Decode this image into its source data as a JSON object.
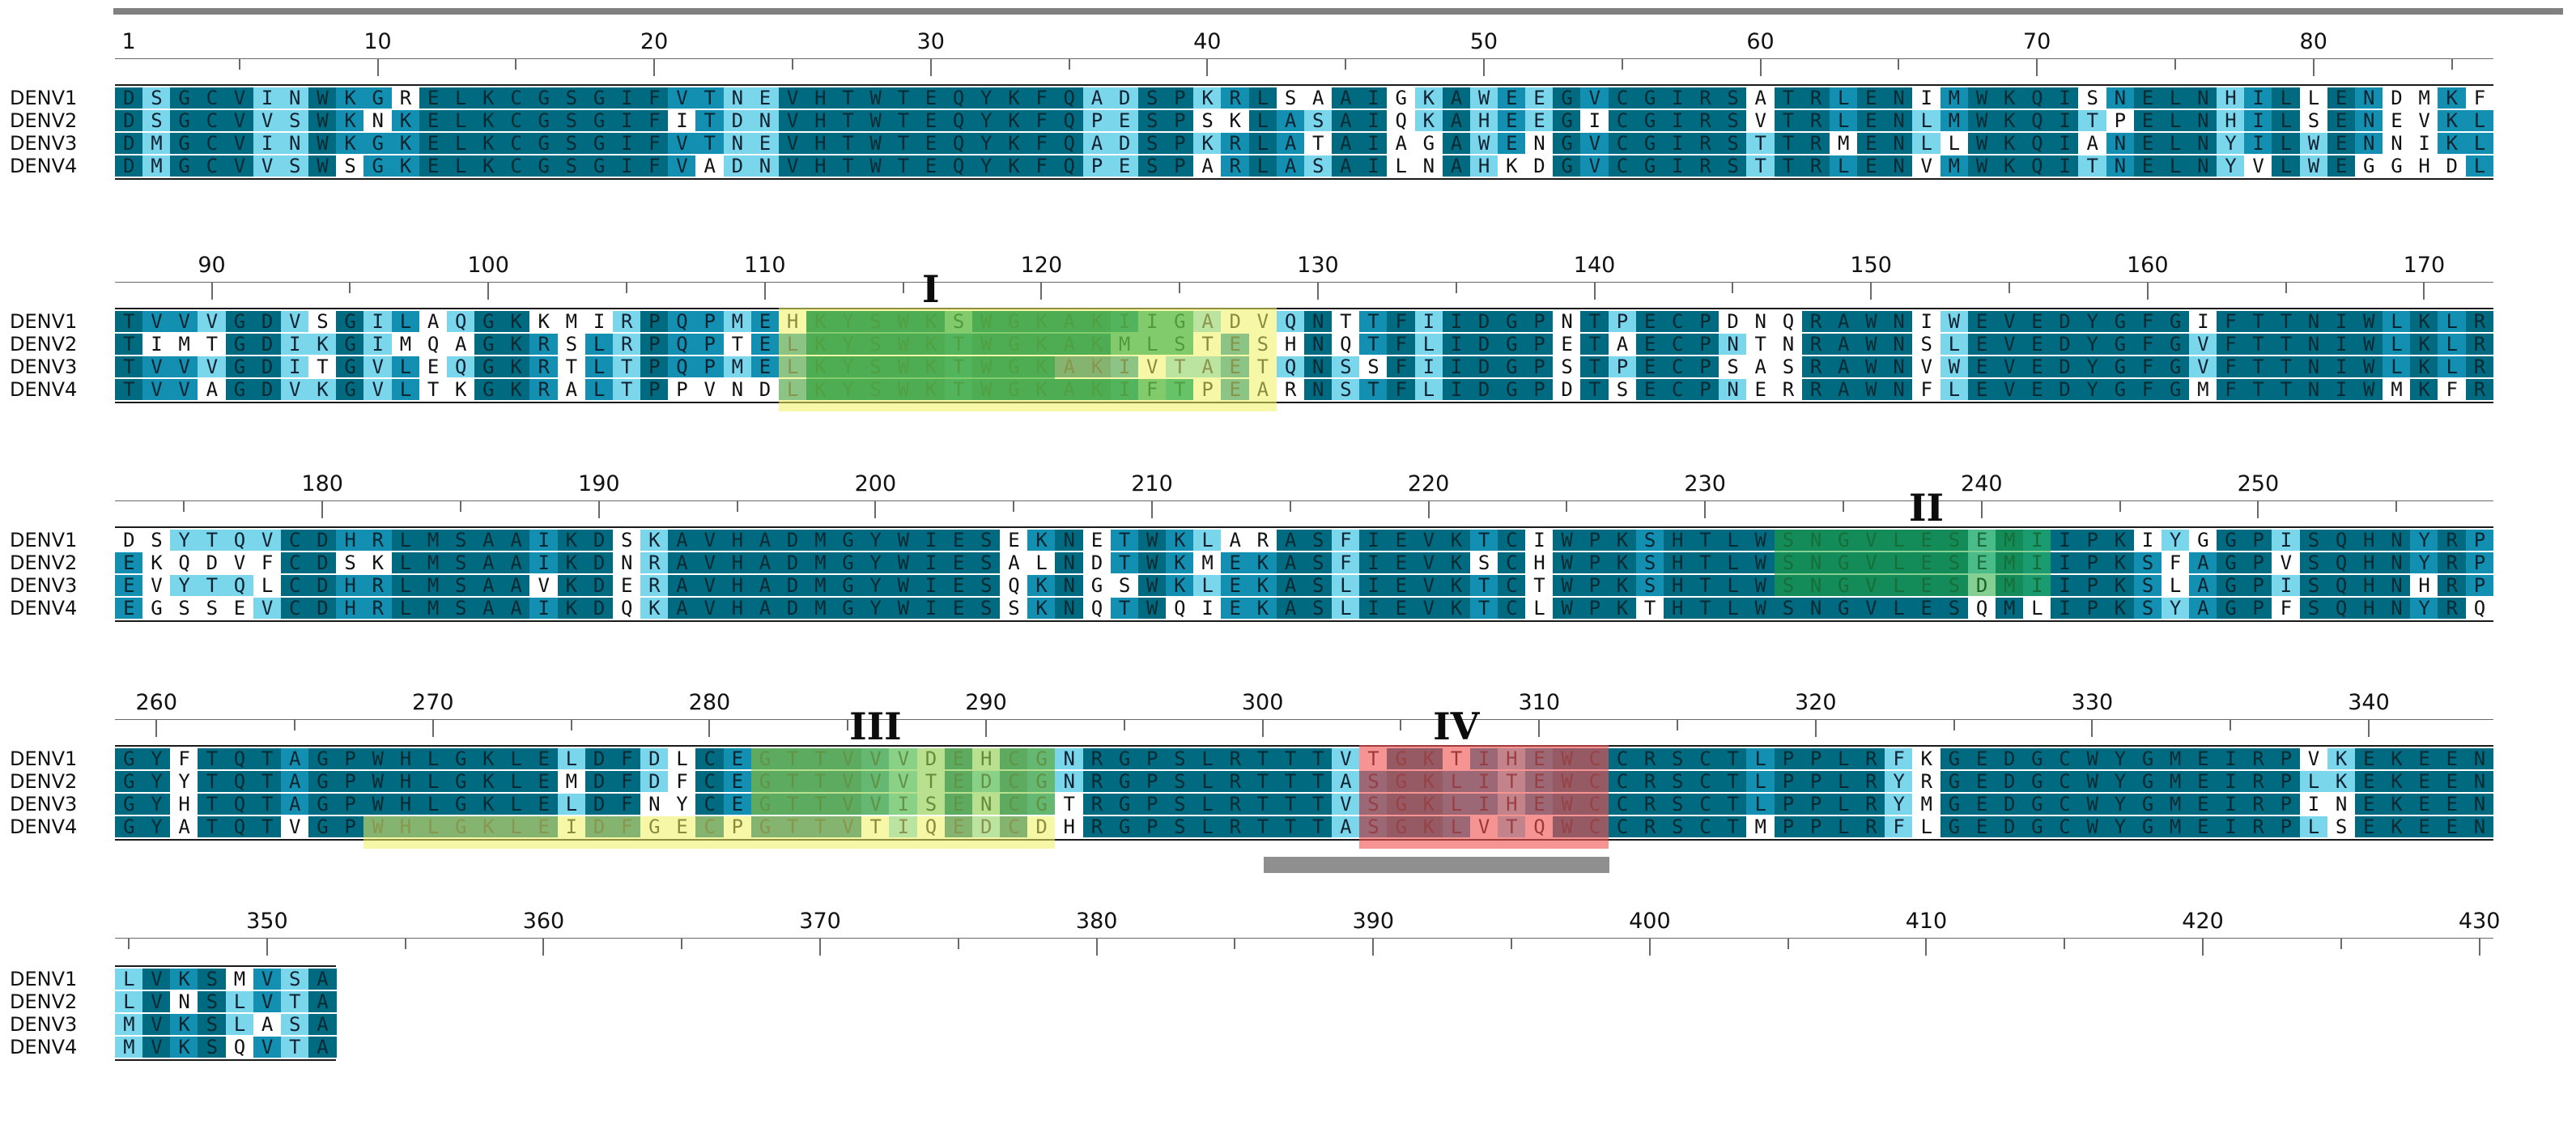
{
  "sequences": [
    {
      "name": "DENV1",
      "seq": "DSGCVINWKGRELKCGSGIFVTNEVHTWTEQYKFQADSPKRLSAAIGKAWEEGVCGIRSATRLENIMWKQISNELNHILLENDMKFTVVVGDVSGILAQGKKMIRPQPMEHKYSWKSWGKAKIIGADVQNTTFIIDGPNTPECPDNQRAWNIWEVEDYGFGIFTTNIWLKLRDSYTQVCDHRLMSAAIKDSKAVHADMGYWIESEKNETWKLARASFIEVKTCIWPKSHTLWSNGVLESEMIIPKIYGGPISQHNYRPGYFTQTAGPWHLGKLELDFDLCEGTTVVVDEHCGNRGPSLRTTTVTGKTIHEWCCRSCTLPPLRFKGEDGCWYGMEIRPVKEKEENLVKSMVSA"
    },
    {
      "name": "DENV2",
      "seq": "DSGCVVSWKNKELKCGSGIFITDNVHTWTEQYKFQPESPSKLASAIQKAHEEGICGIRSVTRLENLMWKQITPELNHILSENEVKLTIMTGDIKGIMQAGKRSLRPQPTELKYSWKTWGKAKMLSTESHNQTFLIDGPETAECPNTNRAWNSLEVEDYGFGVFTTNIWLKLREKQDVFCDSKLMSAAIKDNRAVHADMGYWIESALNDTWKMEKASFIEVKSCHWPKSHTLWSNGVLESEMIIPKSFAGPVSQHNYRPGYYTQTAGPWHLGKLEMDFDFCEGTTVVVTEDCGNRGPSLRTTTASGKLITEWCCRSCTLPPLRYRGEDGCWYGMEIRPLKEKEENLVNSLVTA"
    },
    {
      "name": "DENV3",
      "seq": "DMGCVINWKGKELKCGSGIFVTNEVHTWTEQYKFQADSPKRLATAIAGAWENGVCGIRSTTRMENLLWKQIANELNYILWENNIKLTVVVGDITGVLEQGKRTLTPQPMELKYSWKTWGKAKIVTAETQNSSFIIDGPSTPECPSASRAWNVWEVEDYGFGVFTTNIWLKLREVYTQLCDHRLMSAAVKDERAVHADMGYWIESQKNGSWKLEKASLIEVKTCTWPKSHTLWSNGVLESDMIIPKSLAGPISQHNHRPGYHTQTAGPWHLGKLELDFNYCEGTTVVISENCGTRGPSLRTTTVSGKLIHEWCCRSCTLPPLRYMGEDGCWYGMEIRPINEKEENMVKSLASA"
    },
    {
      "name": "DENV4",
      "seq": "DMGCVVSWSGKELKCGSGIFVADNVHTWTEQYKFQPESPARLASAILNAHKDGVCGIRSTTRLENVMWKQITNELNYVLWEGGHDLTVVAGDVKGVLTKGKRALTPPVNDLKYSWKTWGKAKIFTPEARNSTFLIDGPDTSECPNERRAWNFLEVEDYGFGMFTTNIWMKFREGSSEVCDHRLMSAAIKDQKAVHADMGYWIESSKNQTWQIEKASLIEVKTCLWPKTHTLWSNGVLESQMLIPKSYAGPFSQHNYRQGYATQTVGPWHLGKLEIDFGECPGTTVTIQEDCDHRGPSLRTTTASGKLVTQWCCRSCTMPPLRFLGEDGCWYGMEIRPLSEKEENMVKSQVTA"
    }
  ],
  "ruler_numbers": [
    "1",
    "10",
    "20",
    "30",
    "40",
    "50",
    "60",
    "70",
    "80",
    "90",
    "100",
    "110",
    "120",
    "130",
    "140",
    "150",
    "160",
    "170",
    "180",
    "190",
    "200",
    "210",
    "220",
    "230",
    "240",
    "250",
    "260",
    "270",
    "280",
    "290",
    "300",
    "310",
    "320",
    "330",
    "340",
    "350",
    "360",
    "370",
    "380",
    "390",
    "400",
    "410",
    "420",
    "430"
  ],
  "motif_labels": [
    "I",
    "II",
    "III",
    "IV"
  ],
  "colors": {
    "conserved": "#006a80",
    "mostly_conserved": "#138fb1",
    "partly_conserved": "#79d6eb",
    "variable": "#ffffff",
    "motif_yellow": "#f0f060",
    "motif_green": "#22a83a",
    "motif_red": "#f05050",
    "ruler": "#808080"
  }
}
